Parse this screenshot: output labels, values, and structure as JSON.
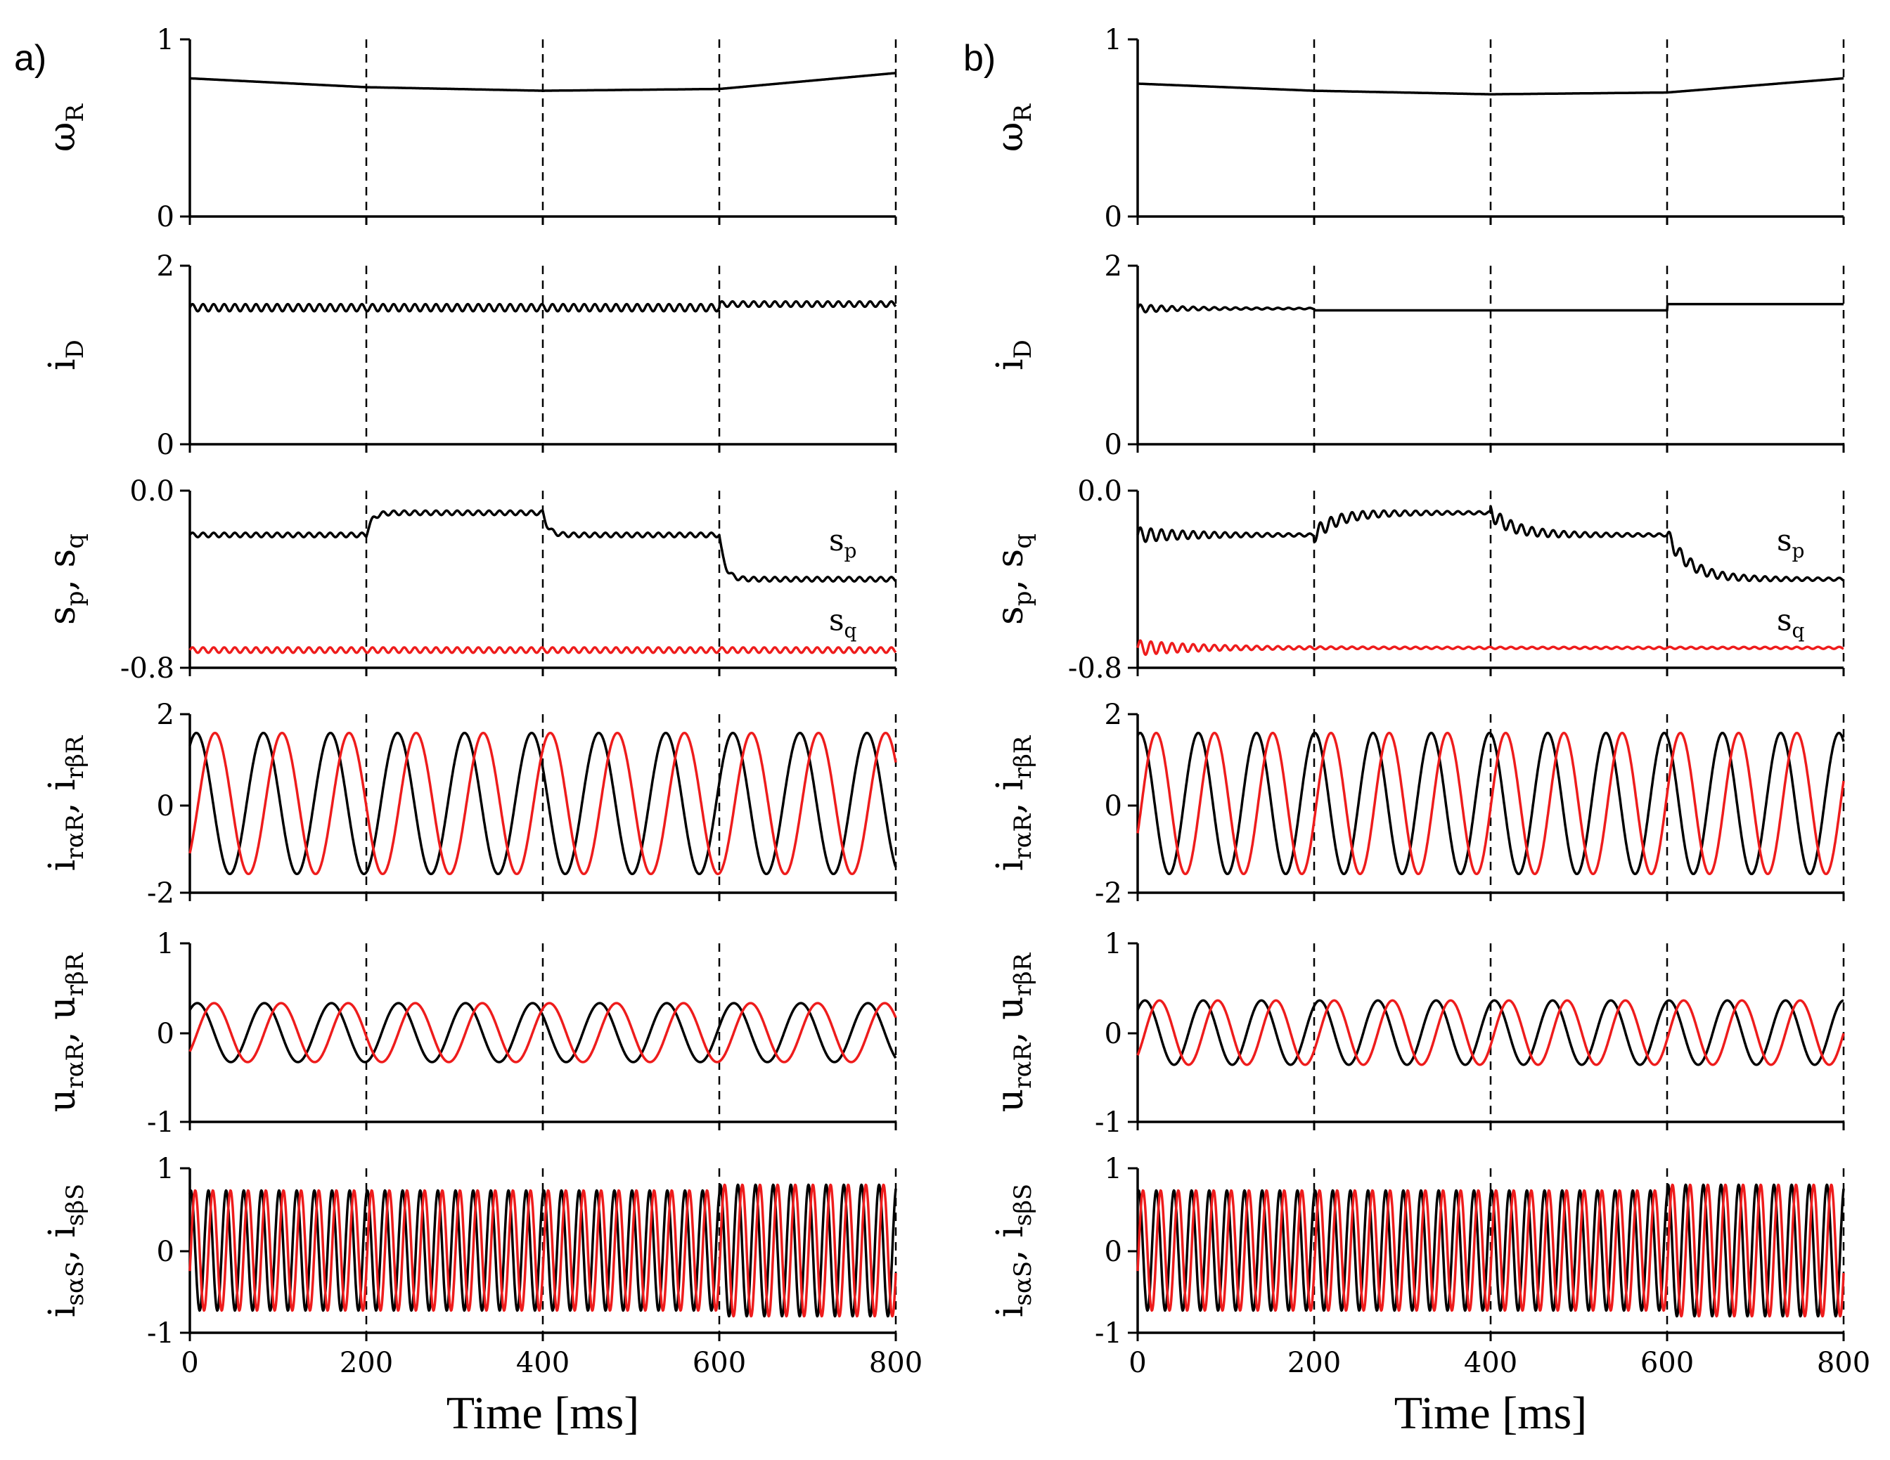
{
  "chart_data": [
    {
      "id": "a",
      "type": "line",
      "panel_label": "a)",
      "xlabel": "Time [ms]",
      "x_range": [
        0,
        800
      ],
      "x_ticks": [
        "0",
        "200",
        "400",
        "600",
        "800"
      ],
      "event_lines_ms": [
        200,
        400,
        600,
        800
      ],
      "rows": [
        {
          "ylabel": "ωR",
          "ylabel_base": "ω",
          "ylabel_sub": "R",
          "ylim": [
            0,
            1
          ],
          "y_ticks": [
            "0",
            "1"
          ],
          "series": [
            {
              "name": "ωR",
              "color": "#000000",
              "kind": "ramp",
              "points": [
                [
                  0,
                  0.78
                ],
                [
                  200,
                  0.73
                ],
                [
                  400,
                  0.71
                ],
                [
                  600,
                  0.72
                ],
                [
                  800,
                  0.81
                ]
              ]
            }
          ]
        },
        {
          "ylabel": "iD",
          "ylabel_base": "i",
          "ylabel_sub": "D",
          "ylim": [
            0,
            2
          ],
          "y_ticks": [
            "0",
            "2"
          ],
          "series": [
            {
              "name": "iD",
              "color": "#000000",
              "kind": "wavy",
              "segments": [
                {
                  "t0": 0,
                  "t1": 600,
                  "level": 1.53,
                  "amp": 0.04,
                  "period": 12
                },
                {
                  "t0": 600,
                  "t1": 800,
                  "level": 1.57,
                  "amp": 0.03,
                  "period": 12
                }
              ]
            }
          ]
        },
        {
          "ylabel": "sp, sq",
          "ylabel_base": "s",
          "ylabel_sub": "p",
          "ylabel_sep": ", s",
          "ylabel_sub2": "q",
          "ylim": [
            -0.8,
            0.0
          ],
          "y_ticks": [
            "-0.8",
            "0.0"
          ],
          "series": [
            {
              "name": "sp",
              "label": "s",
              "label_sub": "p",
              "label_at": [
                740,
                -0.27
              ],
              "color": "#000000",
              "kind": "steps",
              "segments": [
                {
                  "t0": 0,
                  "t1": 200,
                  "level": -0.2
                },
                {
                  "t0": 200,
                  "t1": 400,
                  "level": -0.1
                },
                {
                  "t0": 400,
                  "t1": 600,
                  "level": -0.2
                },
                {
                  "t0": 600,
                  "t1": 800,
                  "level": -0.4
                }
              ],
              "amp": 0.01,
              "period": 12,
              "tau": 6
            },
            {
              "name": "sq",
              "label": "s",
              "label_sub": "q",
              "label_at": [
                740,
                -0.63
              ],
              "color": "#ee1c1c",
              "kind": "wavy",
              "segments": [
                {
                  "t0": 0,
                  "t1": 800,
                  "level": -0.72,
                  "amp": 0.012,
                  "period": 12
                }
              ]
            }
          ]
        },
        {
          "ylabel": "irαR, irβR",
          "ylabel_base": "i",
          "ylabel_sub": "rαR",
          "ylabel_sep": ", i",
          "ylabel_sub2": "rβR",
          "ylim": [
            -2,
            2
          ],
          "y_ticks": [
            "-2",
            "0",
            "2"
          ],
          "series": [
            {
              "name": "irαR",
              "color": "#000000",
              "kind": "sine",
              "amp": 1.58,
              "period": 76,
              "phase_deg": 55
            },
            {
              "name": "irβR",
              "color": "#ee1c1c",
              "kind": "sine",
              "amp": 1.58,
              "period": 76,
              "phase_deg": -45
            }
          ]
        },
        {
          "ylabel": "urαR, urβR",
          "ylabel_base": "u",
          "ylabel_sub": "rαR",
          "ylabel_sep": ", u",
          "ylabel_sub2": "rβR",
          "ylim": [
            -1,
            1
          ],
          "y_ticks": [
            "-1",
            "0",
            "1"
          ],
          "series": [
            {
              "name": "urαR",
              "color": "#000000",
              "kind": "sine",
              "amp": 0.33,
              "period": 76,
              "phase_deg": 50
            },
            {
              "name": "urβR",
              "color": "#ee1c1c",
              "kind": "sine",
              "amp": 0.33,
              "period": 76,
              "phase_deg": -40
            }
          ]
        },
        {
          "ylabel": "isαS, isβS",
          "ylabel_base": "i",
          "ylabel_sub": "sαS",
          "ylabel_sep": ", i",
          "ylabel_sub2": "sβS",
          "ylim": [
            -1,
            1
          ],
          "y_ticks": [
            "-1",
            "0",
            "1"
          ],
          "series": [
            {
              "name": "isαS",
              "color": "#000000",
              "kind": "sine",
              "amp": 0.73,
              "amp_after600": 0.8,
              "period": 20,
              "phase_deg": 70
            },
            {
              "name": "isβS",
              "color": "#ee1c1c",
              "kind": "sine",
              "amp": 0.73,
              "amp_after600": 0.8,
              "period": 20,
              "phase_deg": -20
            }
          ]
        }
      ]
    },
    {
      "id": "b",
      "type": "line",
      "panel_label": "b)",
      "xlabel": "Time [ms]",
      "x_range": [
        0,
        800
      ],
      "x_ticks": [
        "0",
        "200",
        "400",
        "600",
        "800"
      ],
      "event_lines_ms": [
        200,
        400,
        600,
        800
      ],
      "rows": [
        {
          "ylabel": "ωR",
          "ylabel_base": "ω",
          "ylabel_sub": "R",
          "ylim": [
            0,
            1
          ],
          "y_ticks": [
            "0",
            "1"
          ],
          "series": [
            {
              "name": "ωR",
              "color": "#000000",
              "kind": "ramp",
              "points": [
                [
                  0,
                  0.75
                ],
                [
                  200,
                  0.71
                ],
                [
                  400,
                  0.69
                ],
                [
                  600,
                  0.7
                ],
                [
                  800,
                  0.78
                ]
              ]
            }
          ]
        },
        {
          "ylabel": "iD",
          "ylabel_base": "i",
          "ylabel_sub": "D",
          "ylim": [
            0,
            2
          ],
          "y_ticks": [
            "0",
            "2"
          ],
          "series": [
            {
              "name": "iD",
              "color": "#000000",
              "kind": "wavy",
              "segments": [
                {
                  "t0": 0,
                  "t1": 200,
                  "level": 1.52,
                  "amp": 0.04,
                  "period": 12,
                  "decay": 60
                },
                {
                  "t0": 200,
                  "t1": 600,
                  "level": 1.5,
                  "amp": 0.0,
                  "period": 12
                },
                {
                  "t0": 600,
                  "t1": 800,
                  "level": 1.57,
                  "amp": 0.0,
                  "period": 12
                }
              ]
            }
          ]
        },
        {
          "ylabel": "sp, sq",
          "ylabel_base": "s",
          "ylabel_sub": "p",
          "ylabel_sep": ", s",
          "ylabel_sub2": "q",
          "ylim": [
            -0.8,
            0.0
          ],
          "y_ticks": [
            "-0.8",
            "0.0"
          ],
          "series": [
            {
              "name": "sp",
              "label": "s",
              "label_sub": "p",
              "label_at": [
                740,
                -0.27
              ],
              "color": "#000000",
              "kind": "steps",
              "segments": [
                {
                  "t0": 0,
                  "t1": 200,
                  "level": -0.2
                },
                {
                  "t0": 200,
                  "t1": 400,
                  "level": -0.1
                },
                {
                  "t0": 400,
                  "t1": 600,
                  "level": -0.2
                },
                {
                  "t0": 600,
                  "t1": 800,
                  "level": -0.4
                }
              ],
              "amp": 0.03,
              "period": 12,
              "tau": 25,
              "decay": 70
            },
            {
              "name": "sq",
              "label": "s",
              "label_sub": "q",
              "label_at": [
                740,
                -0.63
              ],
              "color": "#ee1c1c",
              "kind": "wavy",
              "segments": [
                {
                  "t0": 0,
                  "t1": 800,
                  "level": -0.71,
                  "amp": 0.03,
                  "period": 12,
                  "decay": 70
                }
              ]
            }
          ]
        },
        {
          "ylabel": "irαR, irβR",
          "ylabel_base": "i",
          "ylabel_sub": "rαR",
          "ylabel_sep": ", i",
          "ylabel_sub2": "rβR",
          "ylim": [
            -2,
            2
          ],
          "y_ticks": [
            "-2",
            "0",
            "2"
          ],
          "series": [
            {
              "name": "irαR",
              "color": "#000000",
              "kind": "sine",
              "amp": 1.58,
              "period": 66,
              "phase_deg": 75
            },
            {
              "name": "irβR",
              "color": "#ee1c1c",
              "kind": "sine",
              "amp": 1.58,
              "period": 66,
              "phase_deg": -25
            }
          ]
        },
        {
          "ylabel": "urαR, urβR",
          "ylabel_base": "u",
          "ylabel_sub": "rαR",
          "ylabel_sep": ", u",
          "ylabel_sub2": "rβR",
          "ylim": [
            -1,
            1
          ],
          "y_ticks": [
            "-1",
            "0",
            "1"
          ],
          "series": [
            {
              "name": "urαR",
              "color": "#000000",
              "kind": "sine",
              "amp": 0.36,
              "period": 66,
              "phase_deg": 45
            },
            {
              "name": "urβR",
              "color": "#ee1c1c",
              "kind": "sine",
              "amp": 0.36,
              "period": 66,
              "phase_deg": -45
            }
          ]
        },
        {
          "ylabel": "isαS, isβS",
          "ylabel_base": "i",
          "ylabel_sub": "sαS",
          "ylabel_sep": ", i",
          "ylabel_sub2": "sβS",
          "ylim": [
            -1,
            1
          ],
          "y_ticks": [
            "-1",
            "0",
            "1"
          ],
          "series": [
            {
              "name": "isαS",
              "color": "#000000",
              "kind": "sine",
              "amp": 0.73,
              "amp_after600": 0.8,
              "period": 20,
              "phase_deg": 70
            },
            {
              "name": "isβS",
              "color": "#ee1c1c",
              "kind": "sine",
              "amp": 0.73,
              "amp_after600": 0.8,
              "period": 20,
              "phase_deg": -20
            }
          ]
        }
      ]
    }
  ]
}
